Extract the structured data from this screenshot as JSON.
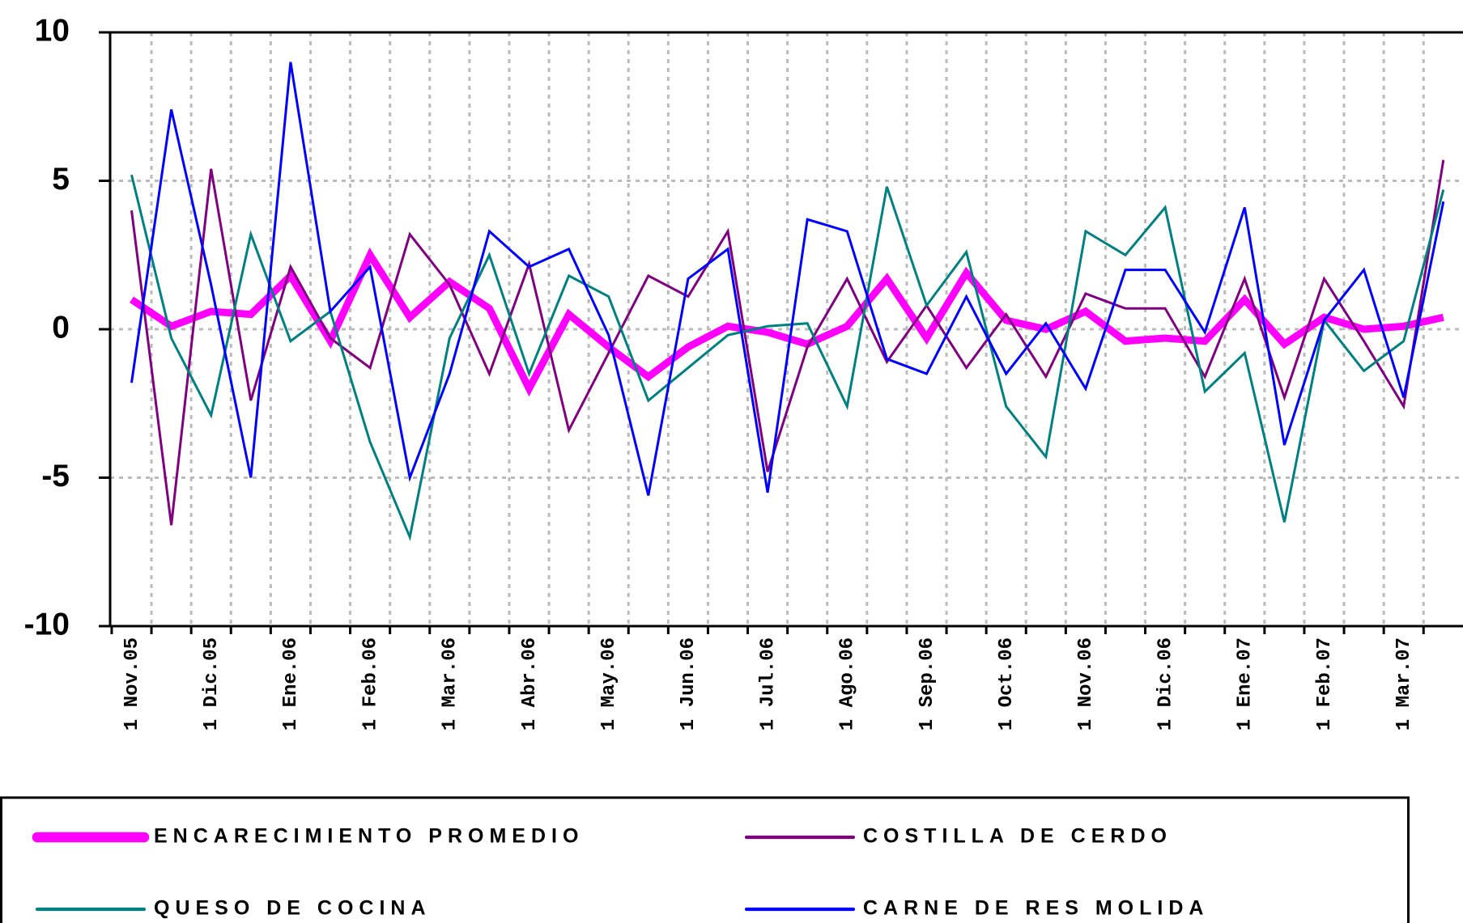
{
  "chart_data": {
    "type": "line",
    "categories": [
      "1 Nov.05",
      null,
      "1 Dic.05",
      null,
      "1 Ene.06",
      null,
      "1 Feb.06",
      null,
      "1 Mar.06",
      null,
      "1 Abr.06",
      null,
      "1 May.06",
      null,
      "1 Jun.06",
      null,
      "1 Jul.06",
      null,
      "1 Ago.06",
      null,
      "1 Sep.06",
      null,
      "1 Oct.06",
      null,
      "1 Nov.06",
      null,
      "1 Dic.06",
      null,
      "1 Ene.07",
      null,
      "1 Feb.07",
      null,
      "1 Mar.07",
      null
    ],
    "series": [
      {
        "name": "ENCARECIMIENTO PROMEDIO",
        "color": "#ff00ff",
        "width": 9,
        "values": [
          1.0,
          0.1,
          0.6,
          0.5,
          1.8,
          -0.4,
          2.5,
          0.4,
          1.6,
          0.7,
          -2.0,
          0.5,
          -0.6,
          -1.6,
          -0.6,
          0.1,
          -0.1,
          -0.5,
          0.1,
          1.7,
          -0.3,
          1.9,
          0.3,
          0.0,
          0.6,
          -0.4,
          -0.3,
          -0.4,
          1.0,
          -0.5,
          0.4,
          0.0,
          0.1,
          0.4
        ]
      },
      {
        "name": "COSTILLA DE CERDO",
        "color": "#800080",
        "width": 3,
        "values": [
          4.0,
          -6.6,
          5.4,
          -2.4,
          2.1,
          -0.3,
          -1.3,
          3.2,
          1.5,
          -1.5,
          2.2,
          -3.4,
          -0.8,
          1.8,
          1.1,
          3.3,
          -4.8,
          -0.6,
          1.7,
          -1.1,
          0.8,
          -1.3,
          0.5,
          -1.6,
          1.2,
          0.7,
          0.7,
          -1.6,
          1.7,
          -2.3,
          1.7,
          -0.4,
          -2.6,
          5.7
        ]
      },
      {
        "name": "QUESO DE COCINA",
        "color": "#008080",
        "width": 3,
        "values": [
          5.2,
          -0.3,
          -2.9,
          3.2,
          -0.4,
          0.6,
          -3.8,
          -7.0,
          -0.3,
          2.5,
          -1.5,
          1.8,
          1.1,
          -2.4,
          -1.3,
          -0.2,
          0.1,
          0.2,
          -2.6,
          4.8,
          0.8,
          2.6,
          -2.6,
          -4.3,
          3.3,
          2.5,
          4.1,
          -2.1,
          -0.8,
          -6.5,
          0.3,
          -1.4,
          -0.4,
          4.7
        ]
      },
      {
        "name": "CARNE DE RES MOLIDA",
        "color": "#0000ff",
        "width": 3,
        "values": [
          -1.8,
          7.4,
          1.5,
          -5.0,
          9.0,
          0.6,
          2.1,
          -5.0,
          -1.5,
          3.3,
          2.1,
          2.7,
          -0.2,
          -5.6,
          1.7,
          2.7,
          -5.5,
          3.7,
          3.3,
          -1.0,
          -1.5,
          1.1,
          -1.5,
          0.2,
          -2.0,
          2.0,
          2.0,
          -0.1,
          4.1,
          -3.9,
          0.3,
          2.0,
          -2.3,
          4.3
        ]
      }
    ],
    "ylim": [
      -10,
      10
    ],
    "yticks": [
      -10,
      -5,
      0,
      5,
      10
    ],
    "grid": true,
    "legend": "bottom"
  }
}
